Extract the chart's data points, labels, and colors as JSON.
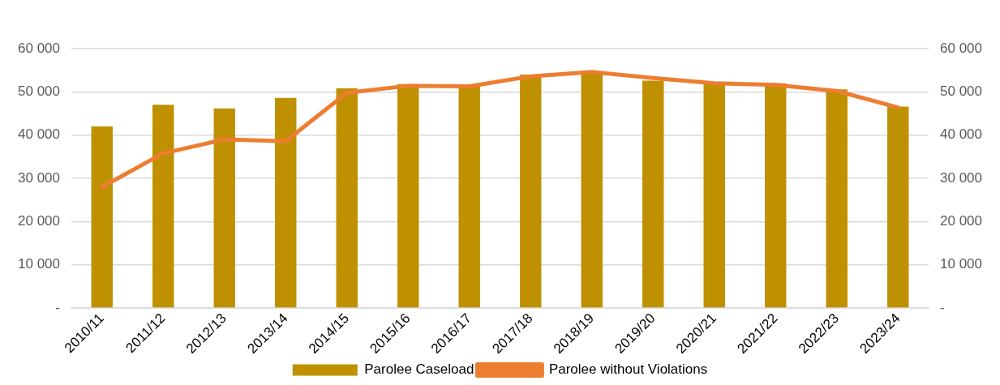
{
  "chart_data": {
    "type": "bar",
    "categories": [
      "2010/11",
      "2011/12",
      "2012/13",
      "2013/14",
      "2014/15",
      "2015/16",
      "2016/17",
      "2017/18",
      "2018/19",
      "2019/20",
      "2020/21",
      "2021/22",
      "2022/23",
      "2023/24"
    ],
    "series": [
      {
        "name": "Parolee Caseload",
        "color": "#bf9000",
        "values": [
          42000,
          47000,
          46200,
          48600,
          50800,
          51800,
          51200,
          54000,
          54800,
          52600,
          52000,
          52000,
          50600,
          46600
        ]
      },
      {
        "name": "Parolee without Violations",
        "type": "line",
        "axis": "y2",
        "color": "#ed7d31",
        "values": [
          28000,
          35800,
          39000,
          38600,
          49800,
          51400,
          51300,
          53600,
          54600,
          53200,
          52000,
          51600,
          50200,
          46400
        ]
      }
    ],
    "ylim": [
      0,
      60000
    ],
    "yticks": [
      {
        "value": 0,
        "label": "-"
      },
      {
        "value": 10000,
        "label": "10 000"
      },
      {
        "value": 20000,
        "label": "20 000"
      },
      {
        "value": 30000,
        "label": "30 000"
      },
      {
        "value": 40000,
        "label": "40 000"
      },
      {
        "value": 50000,
        "label": "50 000"
      },
      {
        "value": 60000,
        "label": "60 000"
      }
    ],
    "y2lim": [
      0,
      60000
    ],
    "y2ticks": [
      {
        "value": 0,
        "label": "-"
      },
      {
        "value": 10000,
        "label": "10 000"
      },
      {
        "value": 20000,
        "label": "20 000"
      },
      {
        "value": 30000,
        "label": "30 000"
      },
      {
        "value": 40000,
        "label": "40 000"
      },
      {
        "value": 50000,
        "label": "50 000"
      },
      {
        "value": 60000,
        "label": "60 000"
      }
    ],
    "grid": "y",
    "legend": "bottom",
    "marker": "none",
    "line_style": "solid"
  }
}
